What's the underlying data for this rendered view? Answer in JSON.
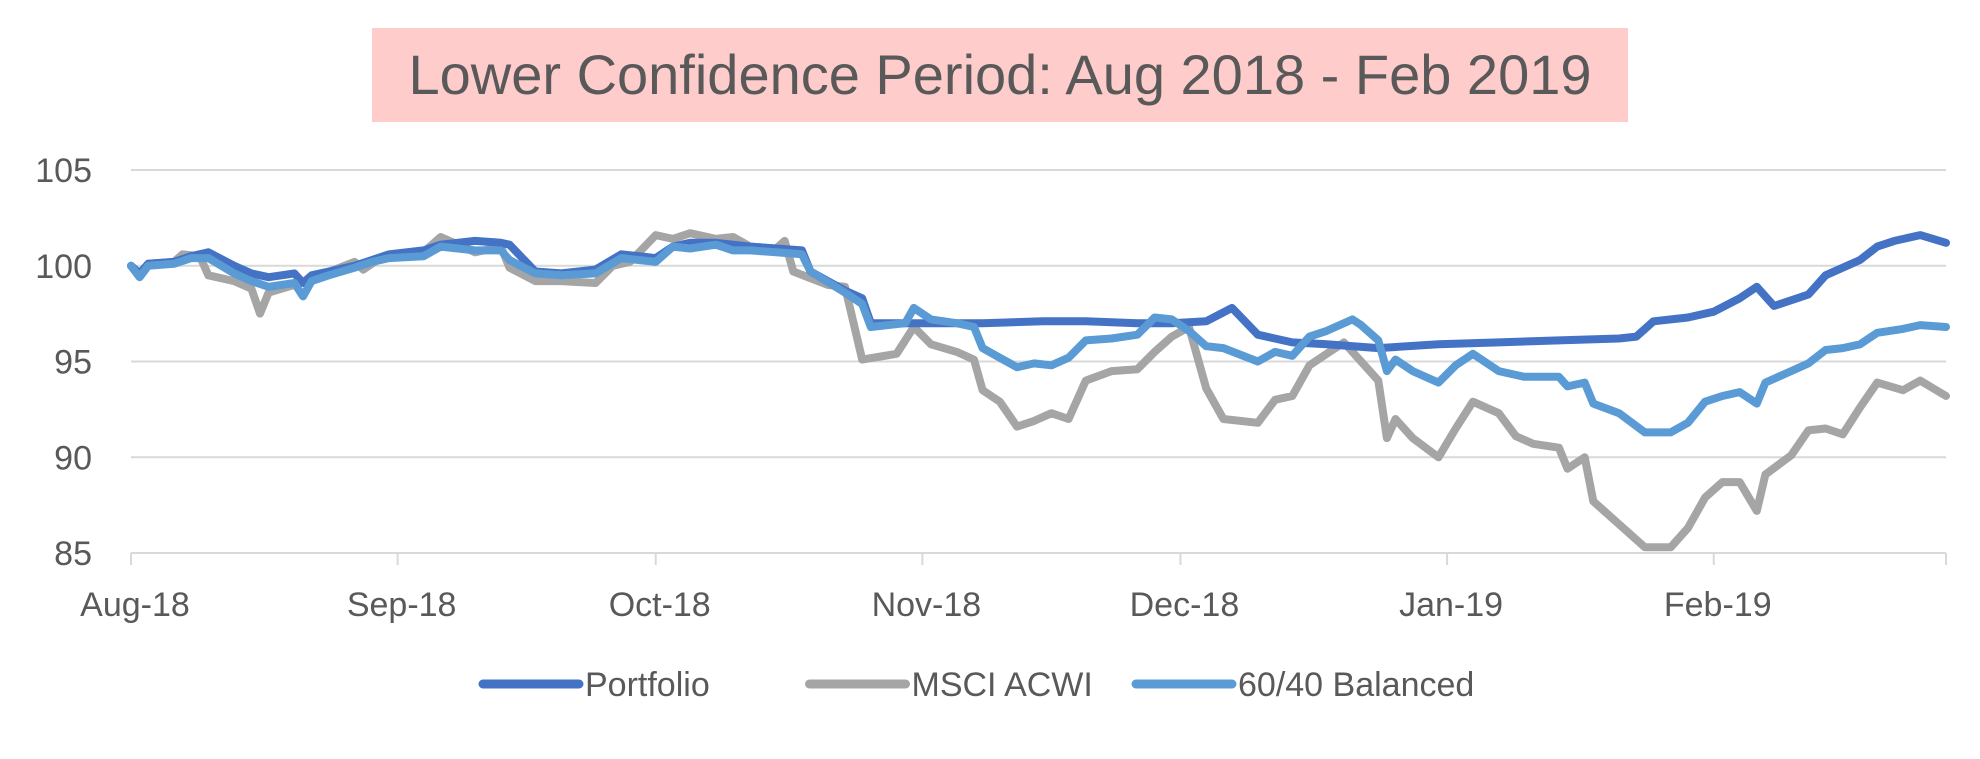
{
  "chart_data": {
    "type": "line",
    "title": "Lower Confidence Period: Aug 2018 - Feb 2019",
    "title_background": "#ffcccc",
    "xlabel": "",
    "ylabel": "",
    "ylim": [
      85,
      105
    ],
    "yticks": [
      "85",
      "90",
      "95",
      "100",
      "105"
    ],
    "xlim": [
      "2018-08-01",
      "2019-02-28"
    ],
    "xticks": [
      {
        "date": "2018-08-01",
        "label": "Aug-18"
      },
      {
        "date": "2018-09-01",
        "label": "Sep-18"
      },
      {
        "date": "2018-10-01",
        "label": "Oct-18"
      },
      {
        "date": "2018-11-01",
        "label": "Nov-18"
      },
      {
        "date": "2018-12-01",
        "label": "Dec-18"
      },
      {
        "date": "2019-01-01",
        "label": "Jan-19"
      },
      {
        "date": "2019-02-01",
        "label": "Feb-19"
      }
    ],
    "grid": true,
    "legend_position": "bottom",
    "series": [
      {
        "name": "Portfolio",
        "color": "#4472c4",
        "points": [
          [
            "2018-08-01",
            100.0
          ],
          [
            "2018-08-02",
            99.6
          ],
          [
            "2018-08-03",
            100.1
          ],
          [
            "2018-08-06",
            100.2
          ],
          [
            "2018-08-08",
            100.5
          ],
          [
            "2018-08-10",
            100.7
          ],
          [
            "2018-08-13",
            100.0
          ],
          [
            "2018-08-15",
            99.6
          ],
          [
            "2018-08-17",
            99.4
          ],
          [
            "2018-08-20",
            99.6
          ],
          [
            "2018-08-21",
            99.1
          ],
          [
            "2018-08-22",
            99.5
          ],
          [
            "2018-08-24",
            99.7
          ],
          [
            "2018-08-27",
            100.0
          ],
          [
            "2018-08-29",
            100.3
          ],
          [
            "2018-08-31",
            100.6
          ],
          [
            "2018-09-04",
            100.8
          ],
          [
            "2018-09-06",
            101.1
          ],
          [
            "2018-09-10",
            101.3
          ],
          [
            "2018-09-13",
            101.2
          ],
          [
            "2018-09-14",
            101.1
          ],
          [
            "2018-09-17",
            99.7
          ],
          [
            "2018-09-20",
            99.6
          ],
          [
            "2018-09-24",
            99.8
          ],
          [
            "2018-09-27",
            100.6
          ],
          [
            "2018-10-01",
            100.4
          ],
          [
            "2018-10-03",
            101.0
          ],
          [
            "2018-10-05",
            101.2
          ],
          [
            "2018-10-08",
            101.2
          ],
          [
            "2018-10-10",
            101.1
          ],
          [
            "2018-10-12",
            101.0
          ],
          [
            "2018-10-15",
            100.9
          ],
          [
            "2018-10-18",
            100.8
          ],
          [
            "2018-10-19",
            99.7
          ],
          [
            "2018-10-23",
            98.7
          ],
          [
            "2018-10-25",
            98.3
          ],
          [
            "2018-10-26",
            97.0
          ],
          [
            "2018-10-30",
            97.0
          ],
          [
            "2018-11-02",
            97.0
          ],
          [
            "2018-11-08",
            97.0
          ],
          [
            "2018-11-15",
            97.1
          ],
          [
            "2018-11-20",
            97.1
          ],
          [
            "2018-11-26",
            97.0
          ],
          [
            "2018-11-30",
            97.0
          ],
          [
            "2018-12-04",
            97.1
          ],
          [
            "2018-12-07",
            97.8
          ],
          [
            "2018-12-10",
            96.4
          ],
          [
            "2018-12-14",
            96.0
          ],
          [
            "2018-12-18",
            95.9
          ],
          [
            "2018-12-24",
            95.7
          ],
          [
            "2018-12-31",
            95.9
          ],
          [
            "2019-01-07",
            96.0
          ],
          [
            "2019-01-14",
            96.1
          ],
          [
            "2019-01-21",
            96.2
          ],
          [
            "2019-01-23",
            96.3
          ],
          [
            "2019-01-25",
            97.1
          ],
          [
            "2019-01-29",
            97.3
          ],
          [
            "2019-02-01",
            97.6
          ],
          [
            "2019-02-04",
            98.3
          ],
          [
            "2019-02-06",
            98.9
          ],
          [
            "2019-02-08",
            97.9
          ],
          [
            "2019-02-12",
            98.5
          ],
          [
            "2019-02-14",
            99.5
          ],
          [
            "2019-02-18",
            100.3
          ],
          [
            "2019-02-20",
            101.0
          ],
          [
            "2019-02-22",
            101.3
          ],
          [
            "2019-02-25",
            101.6
          ],
          [
            "2019-02-28",
            101.2
          ]
        ]
      },
      {
        "name": "MSCI ACWI",
        "color": "#a5a5a5",
        "points": [
          [
            "2018-08-01",
            100.0
          ],
          [
            "2018-08-02",
            99.5
          ],
          [
            "2018-08-03",
            100.1
          ],
          [
            "2018-08-06",
            100.2
          ],
          [
            "2018-08-07",
            100.6
          ],
          [
            "2018-08-09",
            100.5
          ],
          [
            "2018-08-10",
            99.5
          ],
          [
            "2018-08-13",
            99.2
          ],
          [
            "2018-08-15",
            98.8
          ],
          [
            "2018-08-16",
            97.5
          ],
          [
            "2018-08-17",
            98.6
          ],
          [
            "2018-08-20",
            99.0
          ],
          [
            "2018-08-23",
            99.5
          ],
          [
            "2018-08-27",
            100.2
          ],
          [
            "2018-08-28",
            99.8
          ],
          [
            "2018-08-30",
            100.4
          ],
          [
            "2018-09-04",
            100.7
          ],
          [
            "2018-09-06",
            101.5
          ],
          [
            "2018-09-10",
            100.7
          ],
          [
            "2018-09-13",
            101.0
          ],
          [
            "2018-09-14",
            99.9
          ],
          [
            "2018-09-17",
            99.2
          ],
          [
            "2018-09-20",
            99.2
          ],
          [
            "2018-09-24",
            99.1
          ],
          [
            "2018-09-26",
            100.0
          ],
          [
            "2018-09-28",
            100.2
          ],
          [
            "2018-10-01",
            101.6
          ],
          [
            "2018-10-03",
            101.4
          ],
          [
            "2018-10-05",
            101.7
          ],
          [
            "2018-10-08",
            101.4
          ],
          [
            "2018-10-10",
            101.5
          ],
          [
            "2018-10-12",
            101.0
          ],
          [
            "2018-10-15",
            100.9
          ],
          [
            "2018-10-16",
            101.3
          ],
          [
            "2018-10-17",
            99.7
          ],
          [
            "2018-10-21",
            99.0
          ],
          [
            "2018-10-23",
            98.9
          ],
          [
            "2018-10-24",
            97.0
          ],
          [
            "2018-10-25",
            95.1
          ],
          [
            "2018-10-29",
            95.4
          ],
          [
            "2018-10-31",
            96.8
          ],
          [
            "2018-11-02",
            95.9
          ],
          [
            "2018-11-05",
            95.5
          ],
          [
            "2018-11-07",
            95.1
          ],
          [
            "2018-11-08",
            93.5
          ],
          [
            "2018-11-10",
            92.9
          ],
          [
            "2018-11-12",
            91.6
          ],
          [
            "2018-11-14",
            91.9
          ],
          [
            "2018-11-16",
            92.3
          ],
          [
            "2018-11-18",
            92.0
          ],
          [
            "2018-11-20",
            94.0
          ],
          [
            "2018-11-23",
            94.5
          ],
          [
            "2018-11-26",
            94.6
          ],
          [
            "2018-11-28",
            95.5
          ],
          [
            "2018-11-30",
            96.3
          ],
          [
            "2018-12-02",
            96.8
          ],
          [
            "2018-12-04",
            93.6
          ],
          [
            "2018-12-06",
            92.0
          ],
          [
            "2018-12-10",
            91.8
          ],
          [
            "2018-12-12",
            93.0
          ],
          [
            "2018-12-14",
            93.2
          ],
          [
            "2018-12-16",
            94.8
          ],
          [
            "2018-12-18",
            95.4
          ],
          [
            "2018-12-20",
            96.0
          ],
          [
            "2018-12-21",
            95.5
          ],
          [
            "2018-12-24",
            94.0
          ],
          [
            "2018-12-25",
            91.0
          ],
          [
            "2018-12-26",
            92.0
          ],
          [
            "2018-12-28",
            91.0
          ],
          [
            "2018-12-31",
            90.0
          ],
          [
            "2019-01-02",
            91.5
          ],
          [
            "2019-01-04",
            92.9
          ],
          [
            "2019-01-07",
            92.3
          ],
          [
            "2019-01-09",
            91.1
          ],
          [
            "2019-01-11",
            90.7
          ],
          [
            "2019-01-14",
            90.5
          ],
          [
            "2019-01-15",
            89.4
          ],
          [
            "2019-01-17",
            90.0
          ],
          [
            "2019-01-18",
            87.7
          ],
          [
            "2019-01-21",
            86.5
          ],
          [
            "2019-01-24",
            85.3
          ],
          [
            "2019-01-27",
            85.3
          ],
          [
            "2019-01-29",
            86.3
          ],
          [
            "2019-01-31",
            87.9
          ],
          [
            "2019-02-02",
            88.7
          ],
          [
            "2019-02-04",
            88.7
          ],
          [
            "2019-02-06",
            87.2
          ],
          [
            "2019-02-07",
            89.1
          ],
          [
            "2019-02-10",
            90.1
          ],
          [
            "2019-02-12",
            91.4
          ],
          [
            "2019-02-14",
            91.5
          ],
          [
            "2019-02-16",
            91.2
          ],
          [
            "2019-02-18",
            92.6
          ],
          [
            "2019-02-20",
            93.9
          ],
          [
            "2019-02-23",
            93.5
          ],
          [
            "2019-02-25",
            94.0
          ],
          [
            "2019-02-28",
            93.2
          ]
        ]
      },
      {
        "name": "60/40 Balanced",
        "color": "#5b9bd5",
        "points": [
          [
            "2018-08-01",
            100.0
          ],
          [
            "2018-08-02",
            99.4
          ],
          [
            "2018-08-03",
            100.0
          ],
          [
            "2018-08-06",
            100.1
          ],
          [
            "2018-08-08",
            100.4
          ],
          [
            "2018-08-10",
            100.4
          ],
          [
            "2018-08-13",
            99.6
          ],
          [
            "2018-08-15",
            99.2
          ],
          [
            "2018-08-17",
            98.9
          ],
          [
            "2018-08-20",
            99.1
          ],
          [
            "2018-08-21",
            98.4
          ],
          [
            "2018-08-22",
            99.2
          ],
          [
            "2018-08-24",
            99.5
          ],
          [
            "2018-08-27",
            99.9
          ],
          [
            "2018-08-29",
            100.2
          ],
          [
            "2018-08-31",
            100.4
          ],
          [
            "2018-09-04",
            100.5
          ],
          [
            "2018-09-06",
            101.0
          ],
          [
            "2018-09-10",
            100.8
          ],
          [
            "2018-09-13",
            100.8
          ],
          [
            "2018-09-14",
            100.3
          ],
          [
            "2018-09-17",
            99.6
          ],
          [
            "2018-09-20",
            99.5
          ],
          [
            "2018-09-24",
            99.6
          ],
          [
            "2018-09-27",
            100.4
          ],
          [
            "2018-10-01",
            100.2
          ],
          [
            "2018-10-03",
            101.0
          ],
          [
            "2018-10-05",
            100.9
          ],
          [
            "2018-10-08",
            101.1
          ],
          [
            "2018-10-10",
            100.8
          ],
          [
            "2018-10-12",
            100.8
          ],
          [
            "2018-10-15",
            100.7
          ],
          [
            "2018-10-18",
            100.6
          ],
          [
            "2018-10-19",
            99.7
          ],
          [
            "2018-10-23",
            98.6
          ],
          [
            "2018-10-25",
            98.0
          ],
          [
            "2018-10-26",
            96.8
          ],
          [
            "2018-10-30",
            97.0
          ],
          [
            "2018-10-31",
            97.8
          ],
          [
            "2018-11-02",
            97.2
          ],
          [
            "2018-11-05",
            97.0
          ],
          [
            "2018-11-07",
            96.8
          ],
          [
            "2018-11-08",
            95.7
          ],
          [
            "2018-11-10",
            95.2
          ],
          [
            "2018-11-12",
            94.7
          ],
          [
            "2018-11-14",
            94.9
          ],
          [
            "2018-11-16",
            94.8
          ],
          [
            "2018-11-18",
            95.2
          ],
          [
            "2018-11-20",
            96.1
          ],
          [
            "2018-11-23",
            96.2
          ],
          [
            "2018-11-26",
            96.4
          ],
          [
            "2018-11-28",
            97.3
          ],
          [
            "2018-11-30",
            97.2
          ],
          [
            "2018-12-02",
            96.6
          ],
          [
            "2018-12-04",
            95.8
          ],
          [
            "2018-12-06",
            95.7
          ],
          [
            "2018-12-10",
            95.0
          ],
          [
            "2018-12-12",
            95.5
          ],
          [
            "2018-12-14",
            95.3
          ],
          [
            "2018-12-16",
            96.3
          ],
          [
            "2018-12-18",
            96.6
          ],
          [
            "2018-12-21",
            97.2
          ],
          [
            "2018-12-22",
            96.9
          ],
          [
            "2018-12-24",
            96.1
          ],
          [
            "2018-12-25",
            94.5
          ],
          [
            "2018-12-26",
            95.1
          ],
          [
            "2018-12-28",
            94.5
          ],
          [
            "2018-12-31",
            93.9
          ],
          [
            "2019-01-02",
            94.8
          ],
          [
            "2019-01-04",
            95.4
          ],
          [
            "2019-01-07",
            94.5
          ],
          [
            "2019-01-10",
            94.2
          ],
          [
            "2019-01-14",
            94.2
          ],
          [
            "2019-01-15",
            93.7
          ],
          [
            "2019-01-17",
            93.9
          ],
          [
            "2019-01-18",
            92.8
          ],
          [
            "2019-01-21",
            92.3
          ],
          [
            "2019-01-24",
            91.3
          ],
          [
            "2019-01-27",
            91.3
          ],
          [
            "2019-01-29",
            91.8
          ],
          [
            "2019-01-31",
            92.9
          ],
          [
            "2019-02-02",
            93.2
          ],
          [
            "2019-02-04",
            93.4
          ],
          [
            "2019-02-06",
            92.8
          ],
          [
            "2019-02-07",
            93.9
          ],
          [
            "2019-02-10",
            94.5
          ],
          [
            "2019-02-12",
            94.9
          ],
          [
            "2019-02-14",
            95.6
          ],
          [
            "2019-02-16",
            95.7
          ],
          [
            "2019-02-18",
            95.9
          ],
          [
            "2019-02-20",
            96.5
          ],
          [
            "2019-02-23",
            96.7
          ],
          [
            "2019-02-25",
            96.9
          ],
          [
            "2019-02-28",
            96.8
          ]
        ]
      }
    ]
  }
}
